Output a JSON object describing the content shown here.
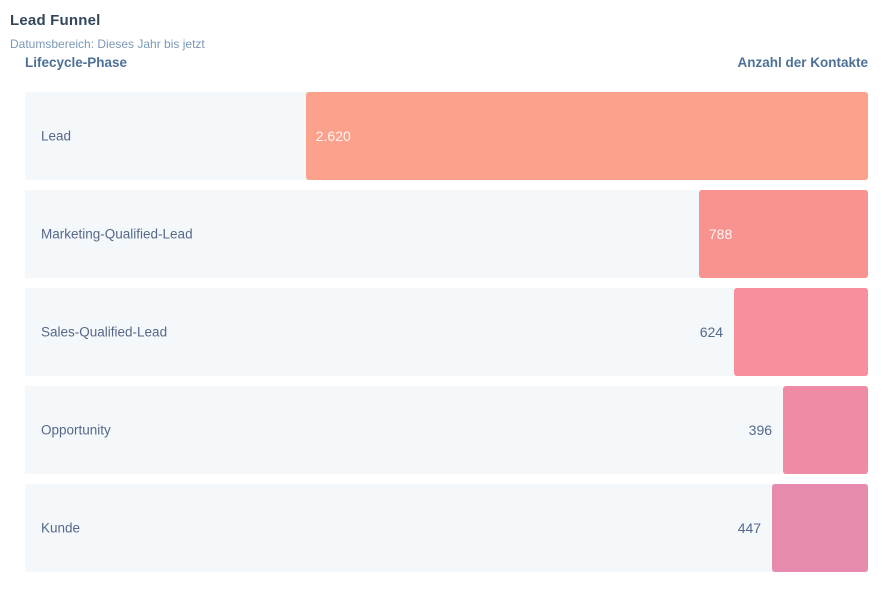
{
  "header": {
    "title": "Lead Funnel",
    "subtitle": "Datumsbereich: Dieses Jahr bis jetzt"
  },
  "columns": {
    "left_header": "Lifecycle-Phase",
    "right_header": "Anzahl der Kontakte"
  },
  "chart_data": {
    "type": "bar",
    "orientation": "horizontal",
    "alignment": "right-aligned bars, one per row",
    "title": "Lead Funnel",
    "xlabel": "Anzahl der Kontakte",
    "ylabel": "Lifecycle-Phase",
    "categories": [
      "Lead",
      "Marketing-Qualified-Lead",
      "Sales-Qualified-Lead",
      "Opportunity",
      "Kunde"
    ],
    "values": [
      2620,
      788,
      624,
      396,
      447
    ],
    "value_labels": [
      "2.620",
      "788",
      "624",
      "396",
      "447"
    ],
    "max_value": 2620,
    "max_bar_fraction": 0.667,
    "grid": false,
    "legend": false,
    "bar_colors": [
      "#fca18b",
      "#f9938f",
      "#f68e9c",
      "#ef8ba5",
      "#e78bae"
    ],
    "row_background": "#f5f8fa"
  },
  "colors": {
    "title_text": "#33475b",
    "subtitle_text": "#7c98b6",
    "column_header_text": "#4d7196",
    "row_label_text": "#56688a",
    "value_inside_text": "#fef6f3",
    "value_outside_text": "#52688c"
  }
}
